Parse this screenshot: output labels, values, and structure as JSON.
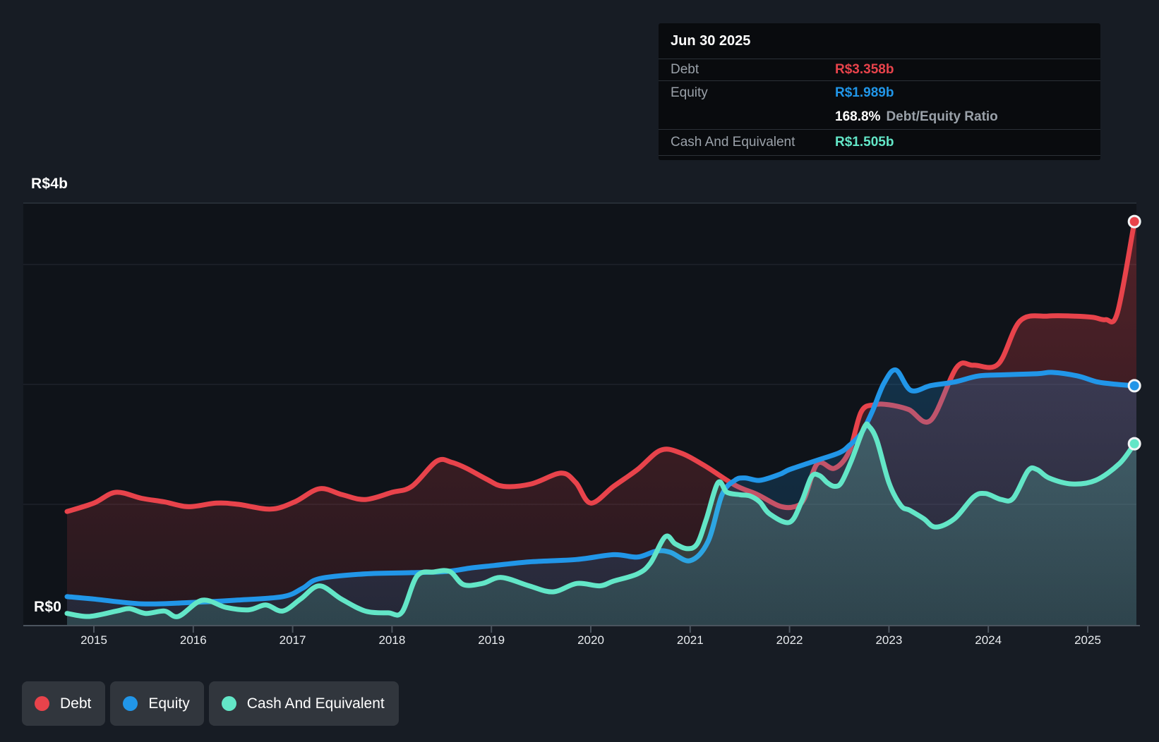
{
  "page": {
    "background": "#171c24",
    "plot_background": "#0f1319"
  },
  "colors": {
    "debt": "#e8434b",
    "equity": "#2196e8",
    "cash": "#63e6c7",
    "grid_faint": "#242a32",
    "grid_top": "#3a424d",
    "axis_line": "#4b545e",
    "tooltip_bg": "#090b0e",
    "legend_pill_bg": "#31363d"
  },
  "tooltip": {
    "date": "Jun 30 2025",
    "debt_label": "Debt",
    "debt_value": "R$3.358b",
    "equity_label": "Equity",
    "equity_value": "R$1.989b",
    "ratio_value": "168.8%",
    "ratio_label": "Debt/Equity Ratio",
    "cash_label": "Cash And Equivalent",
    "cash_value": "R$1.505b"
  },
  "legend": {
    "items": [
      {
        "label": "Debt",
        "color": "#e8434b"
      },
      {
        "label": "Equity",
        "color": "#2196e8"
      },
      {
        "label": "Cash And Equivalent",
        "color": "#63e6c7"
      }
    ]
  },
  "axis": {
    "y_top_label": "R$4b",
    "y_zero_label": "R$0",
    "years": [
      "2015",
      "2016",
      "2017",
      "2018",
      "2019",
      "2020",
      "2021",
      "2022",
      "2023",
      "2024",
      "2025"
    ]
  },
  "chart_data": {
    "type": "area",
    "title": "",
    "xlabel": "",
    "ylabel": "",
    "unit": "R$ billions",
    "x_ticks": [
      2015,
      2016,
      2017,
      2018,
      2019,
      2020,
      2021,
      2022,
      2023,
      2024,
      2025
    ],
    "x_range": [
      2014.73,
      2025.5
    ],
    "ylim": [
      0,
      4
    ],
    "y_gridline_values": [
      1,
      2,
      3
    ],
    "y_axis_max_label": "R$4b",
    "y_axis_zero_label": "R$0",
    "grid": true,
    "legend_position": "bottom-left",
    "last_point_date": "Jun 30 2025",
    "series": [
      {
        "name": "Debt",
        "color": "#e8434b",
        "end_value": 3.358,
        "points": [
          [
            2014.73,
            0.94
          ],
          [
            2015.0,
            1.01
          ],
          [
            2015.22,
            1.1
          ],
          [
            2015.48,
            1.05
          ],
          [
            2015.71,
            1.02
          ],
          [
            2015.95,
            0.98
          ],
          [
            2016.23,
            1.01
          ],
          [
            2016.45,
            1.0
          ],
          [
            2016.78,
            0.96
          ],
          [
            2017.02,
            1.02
          ],
          [
            2017.27,
            1.13
          ],
          [
            2017.5,
            1.08
          ],
          [
            2017.73,
            1.04
          ],
          [
            2018.0,
            1.1
          ],
          [
            2018.2,
            1.15
          ],
          [
            2018.45,
            1.36
          ],
          [
            2018.6,
            1.35
          ],
          [
            2018.75,
            1.3
          ],
          [
            2018.95,
            1.21
          ],
          [
            2019.12,
            1.15
          ],
          [
            2019.4,
            1.17
          ],
          [
            2019.7,
            1.26
          ],
          [
            2019.85,
            1.18
          ],
          [
            2020.0,
            1.01
          ],
          [
            2020.23,
            1.15
          ],
          [
            2020.47,
            1.29
          ],
          [
            2020.7,
            1.45
          ],
          [
            2020.9,
            1.43
          ],
          [
            2021.15,
            1.32
          ],
          [
            2021.45,
            1.16
          ],
          [
            2021.68,
            1.08
          ],
          [
            2021.9,
            0.985
          ],
          [
            2022.05,
            0.98
          ],
          [
            2022.15,
            1.05
          ],
          [
            2022.28,
            1.34
          ],
          [
            2022.45,
            1.3
          ],
          [
            2022.6,
            1.44
          ],
          [
            2022.72,
            1.77
          ],
          [
            2022.85,
            1.83
          ],
          [
            2023.0,
            1.83
          ],
          [
            2023.2,
            1.79
          ],
          [
            2023.42,
            1.7
          ],
          [
            2023.68,
            2.14
          ],
          [
            2023.85,
            2.16
          ],
          [
            2024.1,
            2.17
          ],
          [
            2024.32,
            2.53
          ],
          [
            2024.6,
            2.57
          ],
          [
            2024.85,
            2.57
          ],
          [
            2025.05,
            2.56
          ],
          [
            2025.18,
            2.54
          ],
          [
            2025.3,
            2.6
          ],
          [
            2025.47,
            3.358
          ]
        ]
      },
      {
        "name": "Equity",
        "color": "#2196e8",
        "end_value": 1.989,
        "points": [
          [
            2014.73,
            0.23
          ],
          [
            2015.0,
            0.21
          ],
          [
            2015.48,
            0.17
          ],
          [
            2015.95,
            0.18
          ],
          [
            2016.42,
            0.2
          ],
          [
            2016.9,
            0.23
          ],
          [
            2017.1,
            0.3
          ],
          [
            2017.27,
            0.38
          ],
          [
            2017.73,
            0.42
          ],
          [
            2018.2,
            0.43
          ],
          [
            2018.55,
            0.44
          ],
          [
            2018.8,
            0.47
          ],
          [
            2019.03,
            0.49
          ],
          [
            2019.38,
            0.52
          ],
          [
            2019.86,
            0.54
          ],
          [
            2020.23,
            0.58
          ],
          [
            2020.47,
            0.56
          ],
          [
            2020.66,
            0.61
          ],
          [
            2020.8,
            0.6
          ],
          [
            2021.0,
            0.53
          ],
          [
            2021.18,
            0.69
          ],
          [
            2021.32,
            1.08
          ],
          [
            2021.45,
            1.2
          ],
          [
            2021.55,
            1.22
          ],
          [
            2021.7,
            1.2
          ],
          [
            2021.9,
            1.25
          ],
          [
            2022.0,
            1.29
          ],
          [
            2022.25,
            1.36
          ],
          [
            2022.5,
            1.43
          ],
          [
            2022.6,
            1.49
          ],
          [
            2022.72,
            1.59
          ],
          [
            2022.83,
            1.77
          ],
          [
            2022.95,
            2.01
          ],
          [
            2023.07,
            2.12
          ],
          [
            2023.22,
            1.95
          ],
          [
            2023.42,
            1.99
          ],
          [
            2023.66,
            2.02
          ],
          [
            2023.9,
            2.07
          ],
          [
            2024.15,
            2.08
          ],
          [
            2024.5,
            2.09
          ],
          [
            2024.65,
            2.1
          ],
          [
            2024.9,
            2.07
          ],
          [
            2025.1,
            2.02
          ],
          [
            2025.3,
            2.0
          ],
          [
            2025.47,
            1.989
          ]
        ]
      },
      {
        "name": "Cash And Equivalent",
        "color": "#63e6c7",
        "end_value": 1.505,
        "points": [
          [
            2014.73,
            0.09
          ],
          [
            2014.95,
            0.065
          ],
          [
            2015.23,
            0.11
          ],
          [
            2015.36,
            0.13
          ],
          [
            2015.52,
            0.09
          ],
          [
            2015.71,
            0.11
          ],
          [
            2015.85,
            0.065
          ],
          [
            2016.09,
            0.2
          ],
          [
            2016.33,
            0.14
          ],
          [
            2016.56,
            0.12
          ],
          [
            2016.73,
            0.16
          ],
          [
            2016.9,
            0.11
          ],
          [
            2017.08,
            0.21
          ],
          [
            2017.27,
            0.32
          ],
          [
            2017.49,
            0.21
          ],
          [
            2017.73,
            0.11
          ],
          [
            2017.96,
            0.095
          ],
          [
            2018.1,
            0.1
          ],
          [
            2018.25,
            0.4
          ],
          [
            2018.42,
            0.435
          ],
          [
            2018.58,
            0.44
          ],
          [
            2018.72,
            0.33
          ],
          [
            2018.91,
            0.34
          ],
          [
            2019.1,
            0.39
          ],
          [
            2019.38,
            0.32
          ],
          [
            2019.62,
            0.27
          ],
          [
            2019.86,
            0.34
          ],
          [
            2020.09,
            0.32
          ],
          [
            2020.23,
            0.36
          ],
          [
            2020.47,
            0.42
          ],
          [
            2020.6,
            0.51
          ],
          [
            2020.75,
            0.73
          ],
          [
            2020.85,
            0.67
          ],
          [
            2020.97,
            0.63
          ],
          [
            2021.07,
            0.67
          ],
          [
            2021.16,
            0.87
          ],
          [
            2021.28,
            1.18
          ],
          [
            2021.37,
            1.1
          ],
          [
            2021.5,
            1.08
          ],
          [
            2021.6,
            1.07
          ],
          [
            2021.7,
            1.02
          ],
          [
            2021.8,
            0.92
          ],
          [
            2022.0,
            0.85
          ],
          [
            2022.12,
            1.02
          ],
          [
            2022.22,
            1.23
          ],
          [
            2022.3,
            1.24
          ],
          [
            2022.38,
            1.18
          ],
          [
            2022.45,
            1.15
          ],
          [
            2022.52,
            1.18
          ],
          [
            2022.62,
            1.36
          ],
          [
            2022.75,
            1.64
          ],
          [
            2022.8,
            1.65
          ],
          [
            2022.88,
            1.53
          ],
          [
            2023.0,
            1.18
          ],
          [
            2023.12,
            0.99
          ],
          [
            2023.21,
            0.95
          ],
          [
            2023.35,
            0.88
          ],
          [
            2023.47,
            0.81
          ],
          [
            2023.66,
            0.88
          ],
          [
            2023.85,
            1.06
          ],
          [
            2023.97,
            1.09
          ],
          [
            2024.13,
            1.04
          ],
          [
            2024.25,
            1.05
          ],
          [
            2024.4,
            1.28
          ],
          [
            2024.49,
            1.29
          ],
          [
            2024.61,
            1.22
          ],
          [
            2024.84,
            1.17
          ],
          [
            2025.08,
            1.2
          ],
          [
            2025.32,
            1.34
          ],
          [
            2025.47,
            1.505
          ]
        ]
      }
    ]
  }
}
